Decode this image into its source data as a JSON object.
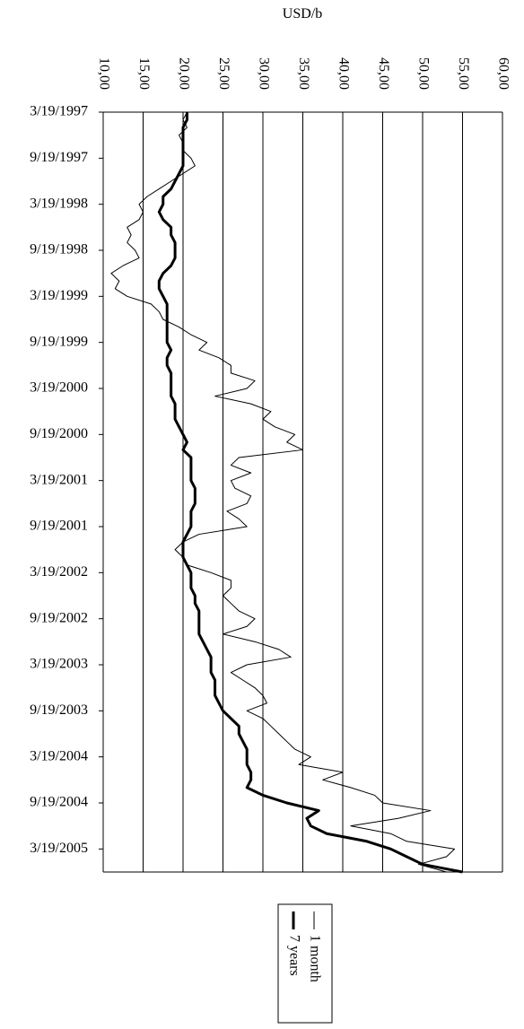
{
  "chart_data": {
    "type": "line",
    "orientation": "rotated",
    "y_label": "USD/b",
    "x": [
      "3/19/1997",
      "4/19/1997",
      "5/19/1997",
      "6/19/1997",
      "7/19/1997",
      "8/19/1997",
      "9/19/1997",
      "10/19/1997",
      "11/19/1997",
      "12/19/1997",
      "1/19/1998",
      "2/19/1998",
      "3/19/1998",
      "4/19/1998",
      "5/19/1998",
      "6/19/1998",
      "7/19/1998",
      "8/19/1998",
      "9/19/1998",
      "10/19/1998",
      "11/19/1998",
      "12/19/1998",
      "1/19/1999",
      "2/19/1999",
      "3/19/1999",
      "4/19/1999",
      "5/19/1999",
      "6/19/1999",
      "7/19/1999",
      "8/19/1999",
      "9/19/1999",
      "10/19/1999",
      "11/19/1999",
      "12/19/1999",
      "1/19/2000",
      "2/19/2000",
      "3/19/2000",
      "4/19/2000",
      "5/19/2000",
      "6/19/2000",
      "7/19/2000",
      "8/19/2000",
      "9/19/2000",
      "10/19/2000",
      "11/19/2000",
      "12/19/2000",
      "1/19/2001",
      "2/19/2001",
      "3/19/2001",
      "4/19/2001",
      "5/19/2001",
      "6/19/2001",
      "7/19/2001",
      "8/19/2001",
      "9/19/2001",
      "10/19/2001",
      "11/19/2001",
      "12/19/2001",
      "1/19/2002",
      "2/19/2002",
      "3/19/2002",
      "4/19/2002",
      "5/19/2002",
      "6/19/2002",
      "7/19/2002",
      "8/19/2002",
      "9/19/2002",
      "10/19/2002",
      "11/19/2002",
      "12/19/2002",
      "1/19/2003",
      "2/19/2003",
      "3/19/2003",
      "4/19/2003",
      "5/19/2003",
      "6/19/2003",
      "7/19/2003",
      "8/19/2003",
      "9/19/2003",
      "10/19/2003",
      "11/19/2003",
      "12/19/2003",
      "1/19/2004",
      "2/19/2004",
      "3/19/2004",
      "4/19/2004",
      "5/19/2004",
      "6/19/2004",
      "7/19/2004",
      "8/19/2004",
      "9/19/2004",
      "10/19/2004",
      "11/19/2004",
      "12/19/2004",
      "1/19/2005",
      "2/19/2005",
      "3/19/2005",
      "4/19/2005",
      "5/19/2005",
      "6/19/2005"
    ],
    "series": [
      {
        "name": "1 month",
        "color": "#000000",
        "width": 1,
        "values": [
          20.5,
          20,
          20.5,
          19.5,
          20,
          20,
          21,
          21.5,
          20,
          18.5,
          17,
          15.5,
          14.5,
          15,
          14.5,
          13,
          13.5,
          13,
          14,
          14.5,
          12.5,
          11,
          12,
          11.5,
          13,
          16,
          17,
          17.5,
          19.5,
          21,
          23,
          22,
          24.5,
          26,
          26,
          29,
          28,
          24,
          28.5,
          31,
          30,
          31.5,
          34,
          33,
          35,
          27,
          26,
          28.5,
          26,
          26.5,
          28.5,
          28,
          25.5,
          27,
          28,
          22,
          20,
          19,
          20,
          20.5,
          23.5,
          26,
          26,
          25,
          26,
          27,
          29,
          28,
          25,
          29,
          32,
          33.5,
          28,
          26,
          27.5,
          29,
          30,
          30.5,
          28,
          30,
          31,
          32,
          33,
          34,
          36,
          34.5,
          40,
          37.5,
          41,
          44,
          45,
          51,
          47,
          41,
          46,
          48,
          54,
          53,
          49.5,
          53
        ]
      },
      {
        "name": "7 years",
        "color": "#000000",
        "width": 3,
        "values": [
          20.5,
          20.5,
          20,
          20,
          20,
          20,
          20,
          20,
          19.5,
          19,
          18.5,
          17.5,
          17.5,
          17,
          17.5,
          18.5,
          18.5,
          19,
          19,
          19,
          18.5,
          17.5,
          17,
          17,
          17.5,
          18,
          18,
          18,
          18,
          18,
          18,
          18.5,
          18,
          18,
          18.5,
          18.5,
          18.5,
          18.5,
          19,
          19,
          19,
          19.5,
          20,
          20.5,
          20,
          21,
          21,
          21,
          21,
          21.5,
          21.5,
          21.5,
          21,
          21,
          21,
          20.5,
          20,
          20,
          20,
          20.5,
          21,
          21,
          21,
          21.5,
          21.5,
          22,
          22,
          22,
          22,
          22.5,
          23,
          23.5,
          23.5,
          23.5,
          24,
          24,
          24,
          24.5,
          25,
          26,
          27,
          27,
          27.5,
          28,
          28,
          28,
          28.5,
          28.5,
          28,
          30,
          33,
          37,
          35.5,
          36,
          38,
          43,
          46,
          48,
          50,
          55
        ]
      }
    ],
    "xlim": [
      "3/19/1997",
      "6/19/2005"
    ],
    "xticks": [
      "3/19/1997",
      "9/19/1997",
      "3/19/1998",
      "9/19/1998",
      "3/19/1999",
      "9/19/1999",
      "3/19/2000",
      "9/19/2000",
      "3/19/2001",
      "9/19/2001",
      "3/19/2002",
      "9/19/2002",
      "3/19/2003",
      "9/19/2003",
      "3/19/2004",
      "9/19/2004",
      "3/19/2005"
    ],
    "ylim": [
      10,
      60
    ],
    "yticks": [
      {
        "value": 10,
        "label": "10,00"
      },
      {
        "value": 15,
        "label": "15,00"
      },
      {
        "value": 20,
        "label": "20,00"
      },
      {
        "value": 25,
        "label": "25,00"
      },
      {
        "value": 30,
        "label": "30,00"
      },
      {
        "value": 35,
        "label": "35,00"
      },
      {
        "value": 40,
        "label": "40,00"
      },
      {
        "value": 45,
        "label": "45,00"
      },
      {
        "value": 50,
        "label": "50,00"
      },
      {
        "value": 55,
        "label": "55,00"
      },
      {
        "value": 60,
        "label": "60,00"
      }
    ],
    "grid": true
  }
}
